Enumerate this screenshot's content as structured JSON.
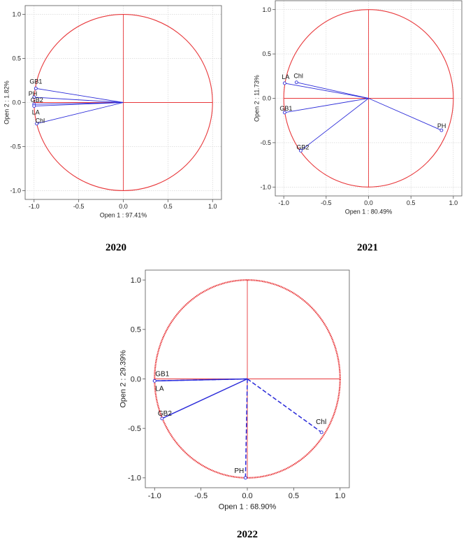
{
  "chart_data": [
    {
      "type": "scatter",
      "xlabel": "Open 1 : 97.41%",
      "ylabel": "Open 2 :  1.82%",
      "xlim": [
        -1.1,
        1.1
      ],
      "ylim": [
        -1.1,
        1.1
      ],
      "xticks": [
        -1.0,
        -0.5,
        0.0,
        0.5,
        1.0
      ],
      "yticks": [
        -1.0,
        -0.5,
        0.0,
        0.5,
        1.0
      ],
      "grid": true,
      "caption": "2020",
      "points": [
        {
          "label": "GB1",
          "x": -0.98,
          "y": 0.16
        },
        {
          "label": "PH",
          "x": -1.0,
          "y": 0.06
        },
        {
          "label": "GB2",
          "x": -1.0,
          "y": -0.02
        },
        {
          "label": "LA",
          "x": -1.0,
          "y": -0.04
        },
        {
          "label": "Chl",
          "x": -0.97,
          "y": -0.24
        }
      ]
    },
    {
      "type": "scatter",
      "xlabel": "Open 1 : 80.49%",
      "ylabel": "Open 2 : 11.73%",
      "xlim": [
        -1.1,
        1.1
      ],
      "ylim": [
        -1.1,
        1.1
      ],
      "xticks": [
        -1.0,
        -0.5,
        0.0,
        0.5,
        1.0
      ],
      "yticks": [
        -1.0,
        -0.5,
        0.0,
        0.5,
        1.0
      ],
      "grid": true,
      "caption": "2021",
      "points": [
        {
          "label": "LA",
          "x": -0.99,
          "y": 0.17
        },
        {
          "label": "Chl",
          "x": -0.85,
          "y": 0.18
        },
        {
          "label": "GB1",
          "x": -0.99,
          "y": -0.16
        },
        {
          "label": "GB2",
          "x": -0.8,
          "y": -0.59
        },
        {
          "label": "PH",
          "x": 0.86,
          "y": -0.36
        }
      ]
    },
    {
      "type": "scatter",
      "xlabel": "Open 1 : 68.90%",
      "ylabel": "Open 2 : 29.39%",
      "xlim": [
        -1.1,
        1.1
      ],
      "ylim": [
        -1.1,
        1.1
      ],
      "xticks": [
        -1.0,
        -0.5,
        0.0,
        0.5,
        1.0
      ],
      "yticks": [
        -1.0,
        -0.5,
        0.0,
        0.5,
        1.0
      ],
      "grid": false,
      "caption": "2022",
      "points": [
        {
          "label": "GB1",
          "x": -1.0,
          "y": -0.02,
          "style": "dashed"
        },
        {
          "label": "LA",
          "x": -1.0,
          "y": -0.02,
          "style": "solid"
        },
        {
          "label": "GB2",
          "x": -0.92,
          "y": -0.4,
          "style": "solid"
        },
        {
          "label": "Chl",
          "x": 0.8,
          "y": -0.54,
          "style": "dashed"
        },
        {
          "label": "PH",
          "x": -0.02,
          "y": -1.0,
          "style": "dashed"
        }
      ]
    }
  ],
  "colors": {
    "circle": "#e8373a",
    "vector": "#2b2bd9",
    "grid": "#cfcfcf",
    "axis": "#555555"
  }
}
